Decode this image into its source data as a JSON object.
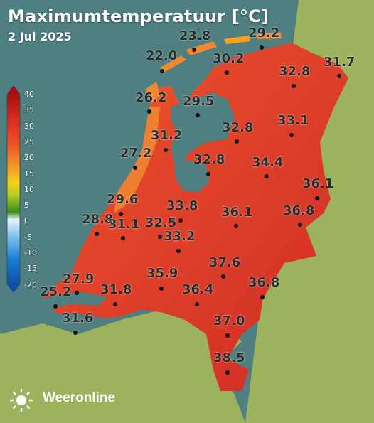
{
  "header": {
    "title": "Maximumtemperatuur [°C]",
    "date": "2 Jul 2025"
  },
  "legend": {
    "unit": "°C",
    "ticks": [
      "40",
      "35",
      "30",
      "25",
      "20",
      "15",
      "10",
      "5",
      "0",
      "-5",
      "-10",
      "-15",
      "-20"
    ],
    "colors": [
      "#a80e10",
      "#d42a20",
      "#ec3c2d",
      "#f05a2a",
      "#f5a221",
      "#f6d219",
      "#c9d21a",
      "#7ab52a",
      "#3d8f1a",
      "#d4ecf6",
      "#6cb8ec",
      "#1a7fd6",
      "#0d4ea8"
    ]
  },
  "stations": [
    {
      "value": "23.8",
      "icon": "station-dot"
    },
    {
      "value": "29.2",
      "icon": "station-dot"
    },
    {
      "value": "22.0",
      "icon": "station-dot"
    },
    {
      "value": "30.2",
      "icon": "station-dot"
    },
    {
      "value": "31.7",
      "icon": "station-dot"
    },
    {
      "value": "32.8",
      "icon": "station-dot"
    },
    {
      "value": "26.2",
      "icon": "station-dot"
    },
    {
      "value": "29.5",
      "icon": "station-dot"
    },
    {
      "value": "33.1",
      "icon": "station-dot"
    },
    {
      "value": "31.2",
      "icon": "station-dot"
    },
    {
      "value": "32.8",
      "icon": "station-dot"
    },
    {
      "value": "27.2",
      "icon": "station-dot"
    },
    {
      "value": "32.8",
      "icon": "station-dot"
    },
    {
      "value": "34.4",
      "icon": "station-dot"
    },
    {
      "value": "36.1",
      "icon": "station-dot"
    },
    {
      "value": "29.6",
      "icon": "station-dot"
    },
    {
      "value": "33.8",
      "icon": "station-dot"
    },
    {
      "value": "36.1",
      "icon": "station-dot"
    },
    {
      "value": "36.8",
      "icon": "station-dot"
    },
    {
      "value": "28.8",
      "icon": "station-dot"
    },
    {
      "value": "31.1",
      "icon": "station-dot"
    },
    {
      "value": "32.5",
      "icon": "station-dot"
    },
    {
      "value": "33.2",
      "icon": "station-dot"
    },
    {
      "value": "37.6",
      "icon": "station-dot"
    },
    {
      "value": "27.9",
      "icon": "station-dot"
    },
    {
      "value": "35.9",
      "icon": "station-dot"
    },
    {
      "value": "36.8",
      "icon": "station-dot"
    },
    {
      "value": "25.2",
      "icon": "station-dot"
    },
    {
      "value": "31.8",
      "icon": "station-dot"
    },
    {
      "value": "36.4",
      "icon": "station-dot"
    },
    {
      "value": "31.6",
      "icon": "station-dot"
    },
    {
      "value": "37.0",
      "icon": "station-dot"
    },
    {
      "value": "38.5",
      "icon": "station-dot"
    }
  ],
  "brand": {
    "name": "Weeronline",
    "icon": "sun-logo-icon"
  },
  "colors": {
    "sea": "#4f7f80",
    "land": "#9cb25c",
    "hot": "#e03a2a",
    "warm": "#f08a30"
  }
}
